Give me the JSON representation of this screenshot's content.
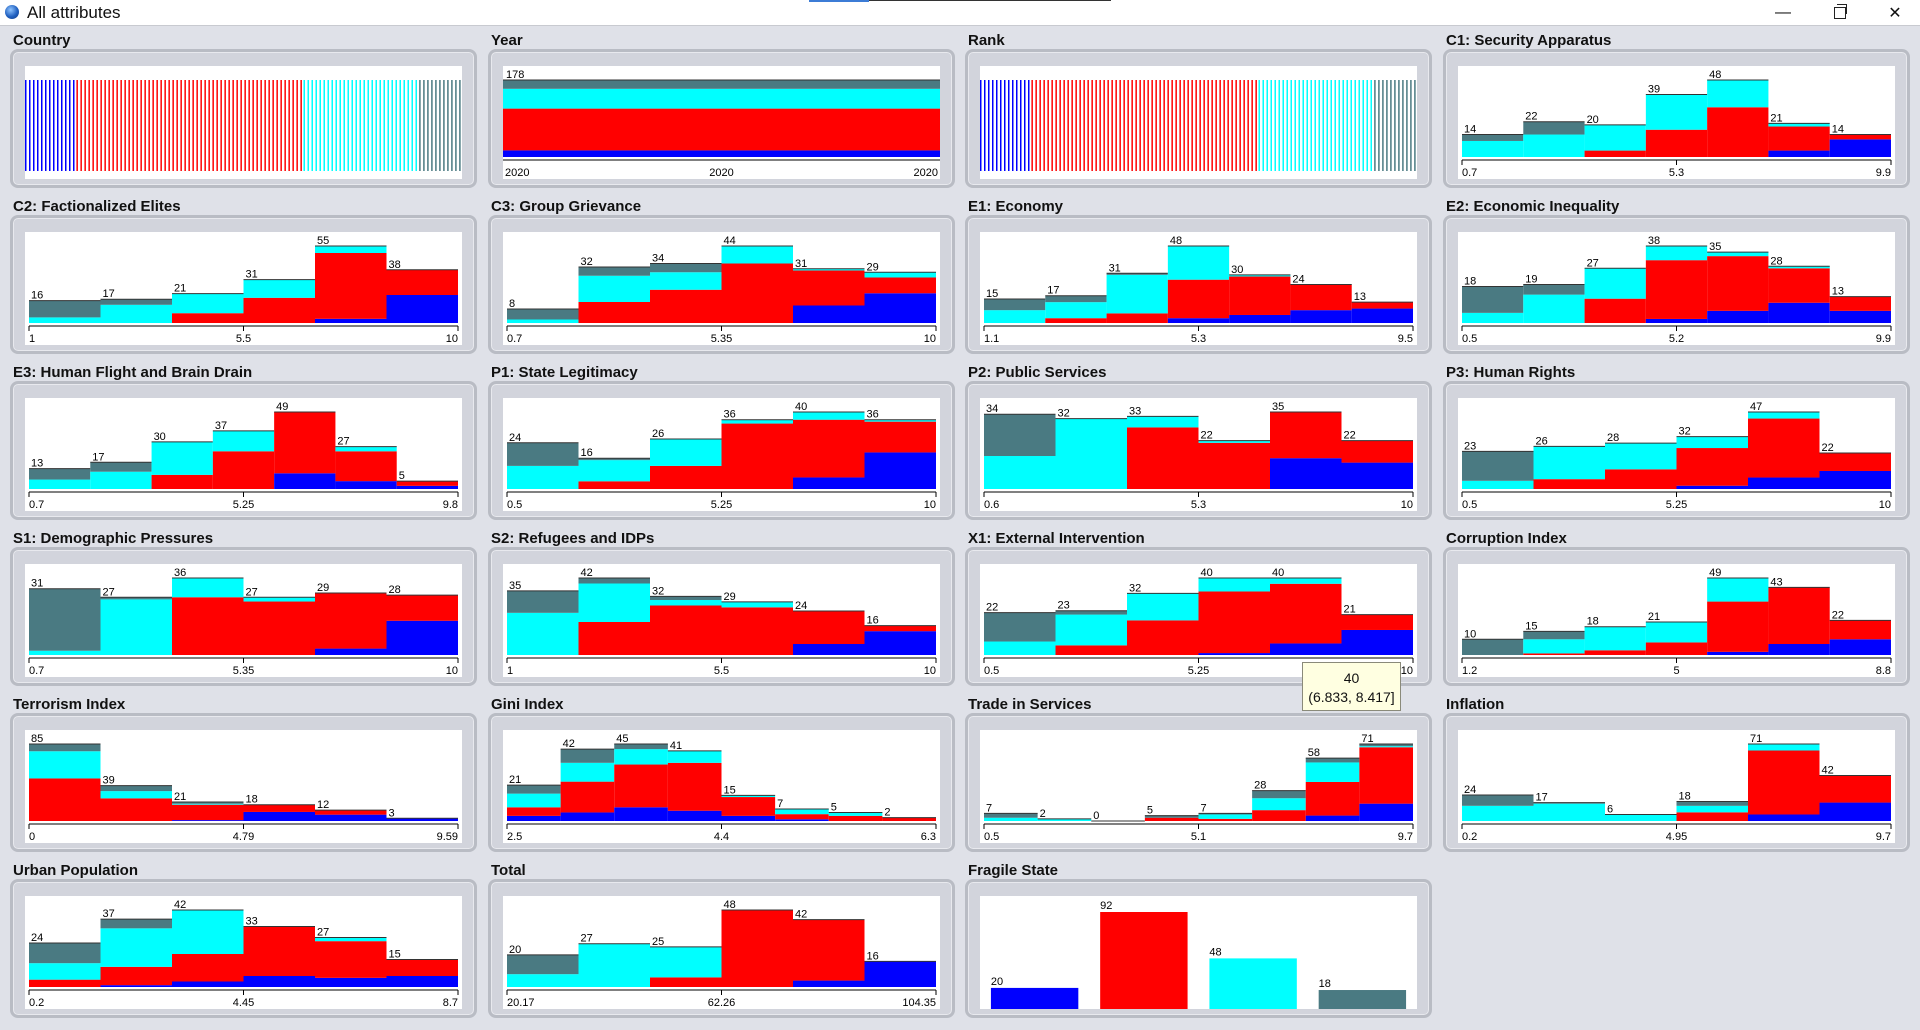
{
  "window": {
    "title": "All attributes",
    "minimize": "—",
    "close": "✕"
  },
  "tooltip": {
    "count": "40",
    "range": "(6.833, 8.417]"
  },
  "colors": {
    "blue": "#0000ff",
    "red": "#ff0000",
    "cyan": "#00ffff",
    "slate": "#4a7a82"
  },
  "chart_data": [
    {
      "name": "Country",
      "type": "barcode",
      "strips": [
        12,
        53,
        27,
        10
      ]
    },
    {
      "name": "Year",
      "type": "stacked-bar",
      "value_label": "178",
      "ticks": [
        "2020",
        "2020",
        "2020"
      ],
      "parts": [
        0.06,
        0.38,
        0.18,
        0.08
      ]
    },
    {
      "name": "Rank",
      "type": "barcode",
      "strips": [
        12,
        53,
        27,
        10
      ]
    },
    {
      "name": "C1: Security Apparatus",
      "type": "histogram",
      "ticks": [
        "0.7",
        "5.3",
        "9.9"
      ],
      "values": [
        14,
        22,
        20,
        39,
        48,
        21,
        14
      ],
      "stacks": [
        [
          0,
          0,
          10,
          4
        ],
        [
          0,
          0,
          14,
          8
        ],
        [
          0,
          4,
          16,
          0
        ],
        [
          0,
          17,
          22,
          0
        ],
        [
          0,
          31,
          17,
          0
        ],
        [
          4,
          15,
          2,
          0
        ],
        [
          11,
          3,
          0,
          0
        ]
      ]
    },
    {
      "name": "C2: Factionalized Elites",
      "type": "histogram",
      "ticks": [
        "1",
        "5.5",
        "10"
      ],
      "values": [
        16,
        17,
        21,
        31,
        55,
        38
      ],
      "stacks": [
        [
          0,
          0,
          4,
          12
        ],
        [
          0,
          0,
          13,
          4
        ],
        [
          0,
          7,
          14,
          0
        ],
        [
          0,
          18,
          13,
          0
        ],
        [
          3,
          47,
          5,
          0
        ],
        [
          20,
          18,
          0,
          0
        ]
      ]
    },
    {
      "name": "C3: Group Grievance",
      "type": "histogram",
      "ticks": [
        "0.7",
        "5.35",
        "10"
      ],
      "values": [
        8,
        32,
        34,
        44,
        31,
        29
      ],
      "stacks": [
        [
          0,
          0,
          2,
          6
        ],
        [
          0,
          12,
          15,
          5
        ],
        [
          0,
          19,
          10,
          5
        ],
        [
          0,
          34,
          10,
          0
        ],
        [
          10,
          20,
          1,
          0
        ],
        [
          17,
          9,
          3,
          0
        ]
      ]
    },
    {
      "name": "E1: Economy",
      "type": "histogram",
      "ticks": [
        "1.1",
        "5.3",
        "9.5"
      ],
      "values": [
        15,
        17,
        31,
        48,
        30,
        24,
        13
      ],
      "stacks": [
        [
          0,
          0,
          8,
          7
        ],
        [
          0,
          3,
          10,
          4
        ],
        [
          0,
          6,
          24,
          1
        ],
        [
          3,
          24,
          21,
          0
        ],
        [
          5,
          24,
          1,
          0
        ],
        [
          8,
          16,
          0,
          0
        ],
        [
          9,
          4,
          0,
          0
        ]
      ]
    },
    {
      "name": "E2: Economic Inequality",
      "type": "histogram",
      "ticks": [
        "0.5",
        "5.2",
        "9.9"
      ],
      "values": [
        18,
        19,
        27,
        38,
        35,
        28,
        13
      ],
      "stacks": [
        [
          0,
          0,
          5,
          13
        ],
        [
          0,
          0,
          14,
          5
        ],
        [
          0,
          12,
          15,
          0
        ],
        [
          2,
          29,
          7,
          0
        ],
        [
          6,
          27,
          2,
          0
        ],
        [
          10,
          17,
          1,
          0
        ],
        [
          6,
          7,
          0,
          0
        ]
      ]
    },
    {
      "name": "E3: Human Flight and Brain Drain",
      "type": "histogram",
      "ticks": [
        "0.7",
        "5.25",
        "9.8"
      ],
      "values": [
        13,
        17,
        30,
        37,
        49,
        27,
        5
      ],
      "stacks": [
        [
          0,
          0,
          6,
          7
        ],
        [
          0,
          0,
          11,
          6
        ],
        [
          0,
          9,
          21,
          0
        ],
        [
          0,
          24,
          13,
          0
        ],
        [
          10,
          39,
          0,
          0
        ],
        [
          5,
          19,
          3,
          0
        ],
        [
          2,
          3,
          0,
          0
        ]
      ]
    },
    {
      "name": "P1: State Legitimacy",
      "type": "histogram",
      "ticks": [
        "0.5",
        "5.25",
        "10"
      ],
      "values": [
        24,
        16,
        26,
        36,
        40,
        36
      ],
      "stacks": [
        [
          0,
          0,
          12,
          12
        ],
        [
          0,
          4,
          11,
          1
        ],
        [
          0,
          12,
          14,
          0
        ],
        [
          0,
          34,
          2,
          0
        ],
        [
          6,
          30,
          4,
          0
        ],
        [
          19,
          16,
          1,
          0
        ]
      ]
    },
    {
      "name": "P2: Public Services",
      "type": "histogram",
      "ticks": [
        "0.6",
        "5.3",
        "10"
      ],
      "values": [
        34,
        32,
        33,
        22,
        35,
        22
      ],
      "stacks": [
        [
          0,
          0,
          15,
          19
        ],
        [
          0,
          0,
          32,
          0
        ],
        [
          0,
          28,
          5,
          0
        ],
        [
          0,
          21,
          1,
          0
        ],
        [
          14,
          21,
          0,
          0
        ],
        [
          12,
          10,
          0,
          0
        ]
      ]
    },
    {
      "name": "P3: Human Rights",
      "type": "histogram",
      "ticks": [
        "0.5",
        "5.25",
        "10"
      ],
      "values": [
        23,
        26,
        28,
        32,
        47,
        22
      ],
      "stacks": [
        [
          0,
          0,
          5,
          18
        ],
        [
          0,
          6,
          20,
          0
        ],
        [
          0,
          12,
          16,
          0
        ],
        [
          2,
          23,
          7,
          0
        ],
        [
          7,
          36,
          4,
          0
        ],
        [
          11,
          11,
          0,
          0
        ]
      ]
    },
    {
      "name": "S1: Demographic Pressures",
      "type": "histogram",
      "ticks": [
        "0.7",
        "5.35",
        "10"
      ],
      "values": [
        31,
        27,
        36,
        27,
        29,
        28
      ],
      "stacks": [
        [
          0,
          0,
          2,
          29
        ],
        [
          0,
          0,
          26,
          1
        ],
        [
          0,
          27,
          9,
          0
        ],
        [
          0,
          25,
          2,
          0
        ],
        [
          3,
          26,
          0,
          0
        ],
        [
          16,
          12,
          0,
          0
        ]
      ]
    },
    {
      "name": "S2: Refugees and IDPs",
      "type": "histogram",
      "ticks": [
        "1",
        "5.5",
        "10"
      ],
      "values": [
        35,
        42,
        32,
        29,
        24,
        16
      ],
      "stacks": [
        [
          0,
          0,
          23,
          12
        ],
        [
          0,
          18,
          21,
          3
        ],
        [
          0,
          27,
          3,
          2
        ],
        [
          0,
          26,
          3,
          0
        ],
        [
          6,
          18,
          0,
          0
        ],
        [
          13,
          3,
          0,
          0
        ]
      ]
    },
    {
      "name": "X1: External Intervention",
      "type": "histogram",
      "ticks": [
        "0.5",
        "5.25",
        "10"
      ],
      "values": [
        22,
        23,
        32,
        40,
        40,
        21
      ],
      "stacks": [
        [
          0,
          0,
          7,
          15
        ],
        [
          0,
          5,
          16,
          2
        ],
        [
          0,
          18,
          14,
          0
        ],
        [
          1,
          32,
          7,
          0
        ],
        [
          6,
          31,
          3,
          0
        ],
        [
          13,
          8,
          0,
          0
        ]
      ]
    },
    {
      "name": "Corruption Index",
      "type": "histogram",
      "ticks": [
        "1.2",
        "5",
        "8.8"
      ],
      "values": [
        10,
        15,
        18,
        21,
        49,
        43,
        22
      ],
      "stacks": [
        [
          0,
          0,
          0,
          10
        ],
        [
          0,
          1,
          9,
          5
        ],
        [
          0,
          3,
          15,
          0
        ],
        [
          0,
          8,
          13,
          0
        ],
        [
          2,
          32,
          15,
          0
        ],
        [
          7,
          36,
          0,
          0
        ],
        [
          10,
          12,
          0,
          0
        ]
      ]
    },
    {
      "name": "Terrorism Index",
      "type": "histogram",
      "ticks": [
        "0",
        "4.79",
        "9.59"
      ],
      "values": [
        85,
        39,
        21,
        18,
        12,
        3
      ],
      "stacks": [
        [
          0,
          47,
          30,
          8
        ],
        [
          0,
          25,
          8,
          6
        ],
        [
          1,
          17,
          1,
          2
        ],
        [
          10,
          8,
          0,
          0
        ],
        [
          7,
          5,
          0,
          0
        ],
        [
          3,
          0,
          0,
          0
        ]
      ]
    },
    {
      "name": "Gini Index",
      "type": "histogram",
      "ticks": [
        "2.5",
        "4.4",
        "6.3"
      ],
      "values": [
        21,
        42,
        45,
        41,
        15,
        7,
        5,
        2
      ],
      "stacks": [
        [
          3,
          5,
          8,
          5
        ],
        [
          5,
          18,
          11,
          8
        ],
        [
          8,
          25,
          9,
          3
        ],
        [
          6,
          28,
          7,
          0
        ],
        [
          3,
          11,
          1,
          0
        ],
        [
          1,
          3,
          3,
          0
        ],
        [
          0,
          3,
          2,
          0
        ],
        [
          0,
          2,
          0,
          0
        ]
      ]
    },
    {
      "name": "Trade in Services",
      "type": "histogram",
      "ticks": [
        "0.5",
        "5.1",
        "9.7"
      ],
      "values": [
        7,
        2,
        0,
        5,
        7,
        28,
        58,
        71
      ],
      "stacks": [
        [
          0,
          0,
          3,
          4
        ],
        [
          0,
          0,
          2,
          0
        ],
        [
          0,
          0,
          0,
          0
        ],
        [
          0,
          3,
          0,
          2
        ],
        [
          0,
          2,
          4,
          1
        ],
        [
          0,
          10,
          11,
          7
        ],
        [
          5,
          31,
          18,
          4
        ],
        [
          16,
          52,
          1,
          2
        ]
      ]
    },
    {
      "name": "Inflation",
      "type": "histogram",
      "ticks": [
        "0.2",
        "4.95",
        "9.7"
      ],
      "values": [
        24,
        17,
        6,
        18,
        71,
        42
      ],
      "stacks": [
        [
          0,
          0,
          14,
          10
        ],
        [
          0,
          0,
          16,
          1
        ],
        [
          0,
          0,
          6,
          0
        ],
        [
          0,
          8,
          6,
          4
        ],
        [
          6,
          59,
          6,
          0
        ],
        [
          17,
          25,
          0,
          0
        ]
      ]
    },
    {
      "name": "Urban Population",
      "type": "histogram",
      "ticks": [
        "0.2",
        "4.45",
        "8.7"
      ],
      "values": [
        24,
        37,
        42,
        33,
        27,
        15
      ],
      "stacks": [
        [
          0,
          4,
          9,
          11
        ],
        [
          1,
          10,
          21,
          5
        ],
        [
          3,
          15,
          24,
          0
        ],
        [
          6,
          27,
          0,
          0
        ],
        [
          5,
          20,
          2,
          0
        ],
        [
          6,
          9,
          0,
          0
        ]
      ]
    },
    {
      "name": "Total",
      "type": "histogram",
      "ticks": [
        "20.17",
        "62.26",
        "104.35"
      ],
      "values": [
        20,
        27,
        25,
        48,
        42,
        16
      ],
      "stacks": [
        [
          0,
          0,
          8,
          12
        ],
        [
          0,
          0,
          27,
          0
        ],
        [
          0,
          6,
          19,
          0
        ],
        [
          0,
          48,
          0,
          0
        ],
        [
          4,
          38,
          0,
          0
        ],
        [
          16,
          0,
          0,
          0
        ]
      ]
    },
    {
      "name": "Fragile State",
      "type": "bar",
      "categories": [
        "blue",
        "red",
        "cyan",
        "slate"
      ],
      "values": [
        20,
        92,
        48,
        18
      ]
    }
  ]
}
